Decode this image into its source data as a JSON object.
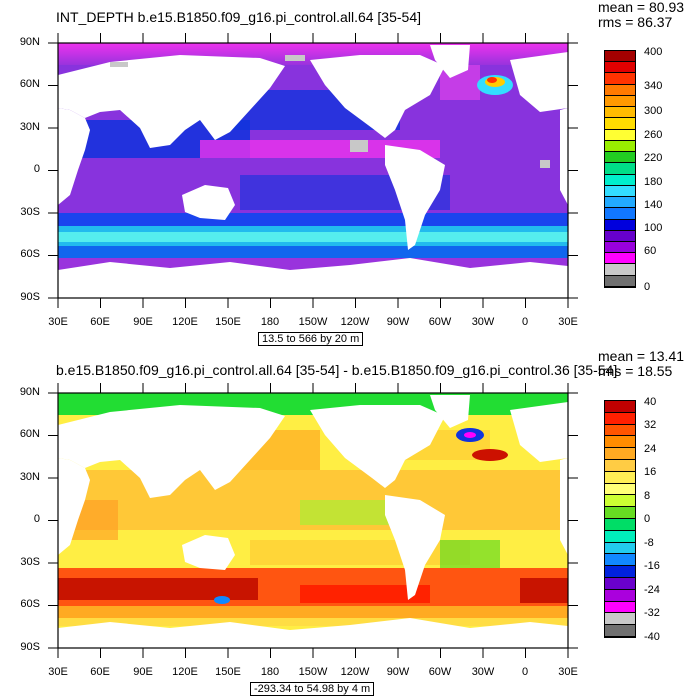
{
  "panels": [
    {
      "title": "INT_DEPTH b.e15.B1850.f09_g16.pi_control.all.64 [35-54]",
      "mean": "mean = 80.93",
      "rms": "rms = 86.37",
      "info": "13.5 to 566 by 20 m",
      "lat_labels": [
        "90N",
        "60N",
        "30N",
        "0",
        "30S",
        "60S",
        "90S"
      ],
      "lon_labels": [
        "30E",
        "60E",
        "90E",
        "120E",
        "150E",
        "180",
        "150W",
        "120W",
        "90W",
        "60W",
        "30W",
        "0",
        "30E"
      ],
      "colorbar_labels": [
        "400",
        "340",
        "300",
        "260",
        "220",
        "180",
        "140",
        "100",
        "60",
        "0"
      ],
      "colorbar_colors": [
        "#a40000",
        "#e00000",
        "#ff3300",
        "#ff7a00",
        "#ff9900",
        "#ffbb00",
        "#ffdd00",
        "#ffff33",
        "#99ee00",
        "#22cc22",
        "#00dd88",
        "#00eecc",
        "#33ddff",
        "#22aaff",
        "#1177ff",
        "#0000dd",
        "#6600cc",
        "#9900dd",
        "#ff00ff",
        "#c8c8c8",
        "#707070"
      ]
    },
    {
      "title": "b.e15.B1850.f09_g16.pi_control.all.64 [35-54] - b.e15.B1850.f09_g16.pi_control.36 [35-54]",
      "mean": "mean = 13.41",
      "rms": "rms = 18.55",
      "info": "-293.34 to 54.98 by 4 m",
      "lat_labels": [
        "90N",
        "60N",
        "30N",
        "0",
        "30S",
        "60S",
        "90S"
      ],
      "lon_labels": [
        "30E",
        "60E",
        "90E",
        "120E",
        "150E",
        "180",
        "150W",
        "120W",
        "90W",
        "60W",
        "30W",
        "0",
        "30E"
      ],
      "colorbar_labels": [
        "40",
        "32",
        "24",
        "16",
        "8",
        "0",
        "-8",
        "-16",
        "-24",
        "-32",
        "-40"
      ],
      "colorbar_colors": [
        "#c00000",
        "#ff2000",
        "#ff5500",
        "#ff8c00",
        "#ffaa22",
        "#ffcc44",
        "#ffee55",
        "#ffff77",
        "#ccff33",
        "#66dd22",
        "#00dd66",
        "#00eebb",
        "#22ccee",
        "#1188ff",
        "#0022dd",
        "#6a00cc",
        "#aa00dd",
        "#ff00ff",
        "#c8c8c8",
        "#707070"
      ]
    }
  ]
}
